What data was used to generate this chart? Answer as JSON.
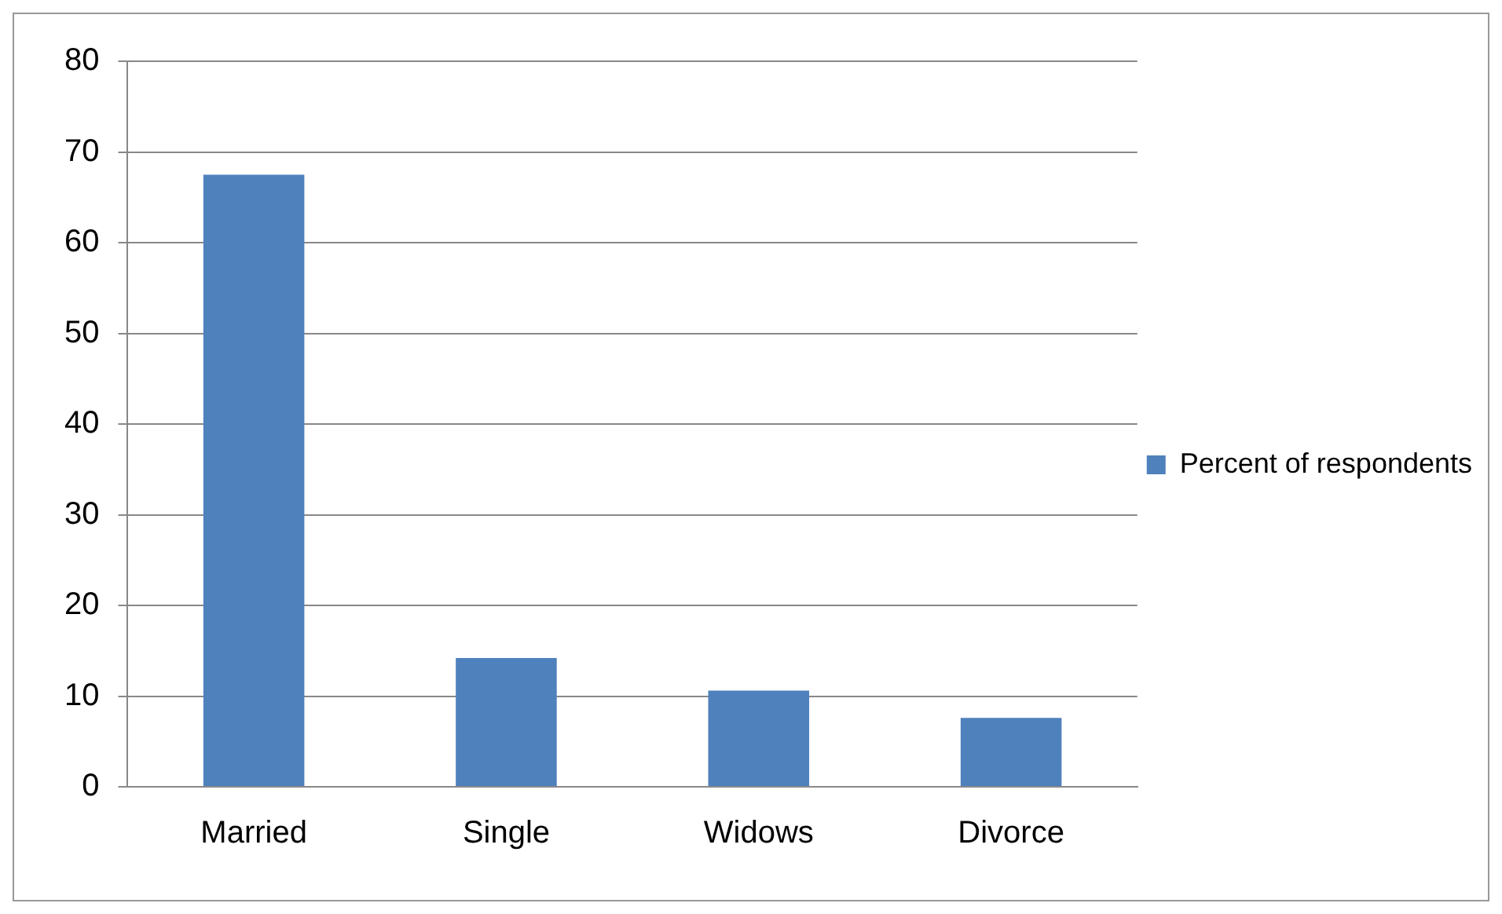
{
  "chart_data": {
    "type": "bar",
    "categories": [
      "Married",
      "Single",
      "Widows",
      "Divorce"
    ],
    "series": [
      {
        "name": "Percent of respondents",
        "color": "#4f81bd",
        "values": [
          67.5,
          14.2,
          10.6,
          7.6
        ]
      }
    ],
    "ylim": [
      0,
      80
    ],
    "yticks": [
      0,
      10,
      20,
      30,
      40,
      50,
      60,
      70,
      80
    ],
    "grid": "y",
    "legend": "right"
  }
}
